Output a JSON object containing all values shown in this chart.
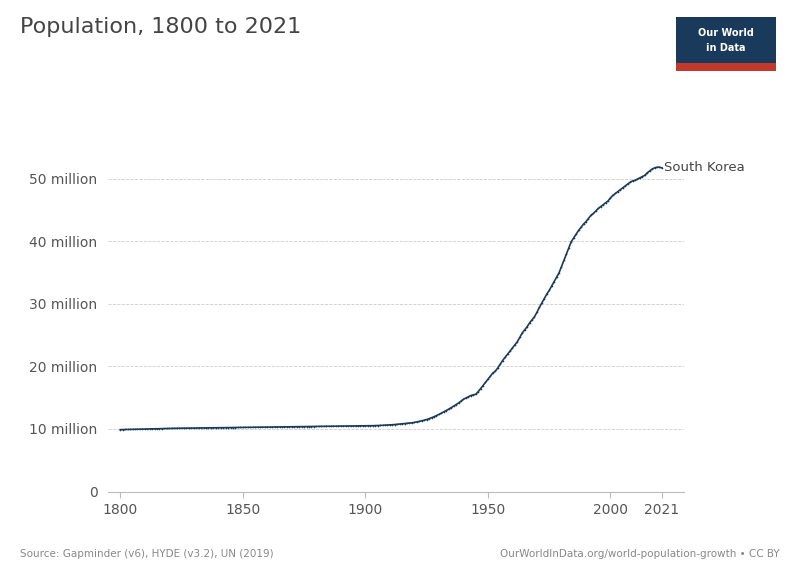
{
  "title": "Population, 1800 to 2021",
  "line_color": "#1a3a5c",
  "background_color": "#ffffff",
  "ylabel_ticks": [
    "0",
    "10 million",
    "20 million",
    "30 million",
    "40 million",
    "50 million"
  ],
  "ytick_values": [
    0,
    10000000,
    20000000,
    30000000,
    40000000,
    50000000
  ],
  "xtick_values": [
    1800,
    1850,
    1900,
    1950,
    2000,
    2021
  ],
  "xlim": [
    1795,
    2030
  ],
  "ylim": [
    0,
    56000000
  ],
  "label": "South Korea",
  "source_left": "Source: Gapminder (v6), HYDE (v3.2), UN (2019)",
  "source_right": "OurWorldInData.org/world-population-growth • CC BY",
  "logo_bg": "#1a3a5c",
  "logo_red": "#c0392b",
  "data": {
    "years": [
      1800,
      1801,
      1802,
      1803,
      1804,
      1805,
      1806,
      1807,
      1808,
      1809,
      1810,
      1811,
      1812,
      1813,
      1814,
      1815,
      1816,
      1817,
      1818,
      1819,
      1820,
      1821,
      1822,
      1823,
      1824,
      1825,
      1826,
      1827,
      1828,
      1829,
      1830,
      1831,
      1832,
      1833,
      1834,
      1835,
      1836,
      1837,
      1838,
      1839,
      1840,
      1841,
      1842,
      1843,
      1844,
      1845,
      1846,
      1847,
      1848,
      1849,
      1850,
      1851,
      1852,
      1853,
      1854,
      1855,
      1856,
      1857,
      1858,
      1859,
      1860,
      1861,
      1862,
      1863,
      1864,
      1865,
      1866,
      1867,
      1868,
      1869,
      1870,
      1871,
      1872,
      1873,
      1874,
      1875,
      1876,
      1877,
      1878,
      1879,
      1880,
      1881,
      1882,
      1883,
      1884,
      1885,
      1886,
      1887,
      1888,
      1889,
      1890,
      1891,
      1892,
      1893,
      1894,
      1895,
      1896,
      1897,
      1898,
      1899,
      1900,
      1901,
      1902,
      1903,
      1904,
      1905,
      1906,
      1907,
      1908,
      1909,
      1910,
      1911,
      1912,
      1913,
      1914,
      1915,
      1916,
      1917,
      1918,
      1919,
      1920,
      1921,
      1922,
      1923,
      1924,
      1925,
      1926,
      1927,
      1928,
      1929,
      1930,
      1931,
      1932,
      1933,
      1934,
      1935,
      1936,
      1937,
      1938,
      1939,
      1940,
      1941,
      1942,
      1943,
      1944,
      1945,
      1946,
      1947,
      1948,
      1949,
      1950,
      1951,
      1952,
      1953,
      1954,
      1955,
      1956,
      1957,
      1958,
      1959,
      1960,
      1961,
      1962,
      1963,
      1964,
      1965,
      1966,
      1967,
      1968,
      1969,
      1970,
      1971,
      1972,
      1973,
      1974,
      1975,
      1976,
      1977,
      1978,
      1979,
      1980,
      1981,
      1982,
      1983,
      1984,
      1985,
      1986,
      1987,
      1988,
      1989,
      1990,
      1991,
      1992,
      1993,
      1994,
      1995,
      1996,
      1997,
      1998,
      1999,
      2000,
      2001,
      2002,
      2003,
      2004,
      2005,
      2006,
      2007,
      2008,
      2009,
      2010,
      2011,
      2012,
      2013,
      2014,
      2015,
      2016,
      2017,
      2018,
      2019,
      2020,
      2021
    ],
    "population": [
      9900000,
      9910000,
      9920000,
      9930000,
      9940000,
      9950000,
      9960000,
      9970000,
      9980000,
      9990000,
      10000000,
      10010000,
      10020000,
      10030000,
      10040000,
      10050000,
      10060000,
      10070000,
      10080000,
      10090000,
      10100000,
      10105000,
      10110000,
      10115000,
      10120000,
      10125000,
      10130000,
      10135000,
      10140000,
      10145000,
      10150000,
      10155000,
      10160000,
      10165000,
      10170000,
      10175000,
      10180000,
      10185000,
      10190000,
      10195000,
      10200000,
      10205000,
      10210000,
      10215000,
      10220000,
      10225000,
      10230000,
      10235000,
      10240000,
      10245000,
      10250000,
      10255000,
      10260000,
      10265000,
      10270000,
      10275000,
      10280000,
      10285000,
      10290000,
      10295000,
      10300000,
      10305000,
      10310000,
      10315000,
      10320000,
      10325000,
      10330000,
      10335000,
      10340000,
      10345000,
      10350000,
      10355000,
      10360000,
      10365000,
      10370000,
      10375000,
      10380000,
      10385000,
      10390000,
      10395000,
      10400000,
      10405000,
      10410000,
      10415000,
      10420000,
      10425000,
      10430000,
      10435000,
      10440000,
      10445000,
      10450000,
      10455000,
      10460000,
      10465000,
      10470000,
      10475000,
      10480000,
      10485000,
      10490000,
      10495000,
      10500000,
      10510000,
      10520000,
      10530000,
      10540000,
      10550000,
      10570000,
      10590000,
      10610000,
      10630000,
      10650000,
      10680000,
      10710000,
      10750000,
      10790000,
      10830000,
      10870000,
      10910000,
      10950000,
      10990000,
      11050000,
      11130000,
      11210000,
      11310000,
      11410000,
      11510000,
      11650000,
      11800000,
      11960000,
      12140000,
      12330000,
      12530000,
      12740000,
      12950000,
      13170000,
      13400000,
      13650000,
      13900000,
      14150000,
      14450000,
      14750000,
      14950000,
      15150000,
      15350000,
      15450000,
      15550000,
      15950000,
      16450000,
      16950000,
      17450000,
      17950000,
      18450000,
      18950000,
      19250000,
      19750000,
      20350000,
      20950000,
      21450000,
      21950000,
      22450000,
      22950000,
      23450000,
      23950000,
      24650000,
      25350000,
      25850000,
      26350000,
      26950000,
      27450000,
      27950000,
      28650000,
      29450000,
      30150000,
      30850000,
      31550000,
      32150000,
      32850000,
      33550000,
      34250000,
      34950000,
      35950000,
      36950000,
      37950000,
      38950000,
      39950000,
      40550000,
      41150000,
      41750000,
      42250000,
      42750000,
      43150000,
      43650000,
      44150000,
      44450000,
      44850000,
      45250000,
      45550000,
      45850000,
      46150000,
      46450000,
      46950000,
      47350000,
      47650000,
      47950000,
      48250000,
      48550000,
      48850000,
      49150000,
      49450000,
      49650000,
      49750000,
      49950000,
      50150000,
      50350000,
      50550000,
      50950000,
      51250000,
      51550000,
      51750000,
      51850000,
      51850000,
      51740000
    ]
  }
}
